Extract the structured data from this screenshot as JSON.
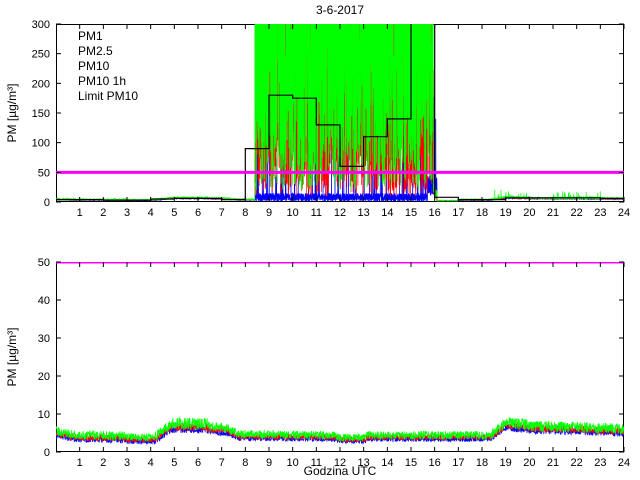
{
  "figure": {
    "title": "3-6-2017",
    "background": "#ffffff"
  },
  "legend": [
    {
      "label": "PM1",
      "color": "#0000ff"
    },
    {
      "label": "PM2.5",
      "color": "#ff0000"
    },
    {
      "label": "PM10",
      "color": "#00ff00"
    },
    {
      "label": "PM10 1h",
      "color": "#000000"
    },
    {
      "label": "Limit PM10",
      "color": "#ff00ff"
    }
  ],
  "chart_data": [
    {
      "type": "line",
      "title": "3-6-2017",
      "xlabel": "",
      "ylabel": "PM [µg/m³]",
      "xlim": [
        0,
        24
      ],
      "ylim": [
        0,
        300
      ],
      "xticks": [
        1,
        2,
        3,
        4,
        5,
        6,
        7,
        8,
        9,
        10,
        11,
        12,
        13,
        14,
        15,
        16,
        17,
        18,
        19,
        20,
        21,
        22,
        23,
        24
      ],
      "yticks": [
        0,
        50,
        100,
        150,
        200,
        250,
        300
      ],
      "grid": false,
      "legend_position": "top-left-inside",
      "limit_line": {
        "label": "Limit PM10",
        "y": 50,
        "color": "#ff00ff"
      },
      "step_series": {
        "name": "PM10 1h",
        "color": "#000000",
        "description": "hourly mean PM10, step per hour 0-23",
        "values": [
          4,
          4,
          3,
          3,
          5,
          6,
          6,
          4,
          90,
          180,
          175,
          130,
          60,
          110,
          140,
          320,
          8,
          4,
          4,
          7,
          7,
          7,
          7,
          6
        ]
      },
      "series": [
        {
          "name": "PM1",
          "color": "#0000ff",
          "segments": [
            [
              0,
              0.6,
              4.2,
              3.6,
              0.8
            ],
            [
              0.6,
              3,
              3.4,
              3.1,
              0.8
            ],
            [
              3,
              4.2,
              2.8,
              2.8,
              0.7
            ],
            [
              4.2,
              4.9,
              3,
              6,
              0.9
            ],
            [
              4.9,
              6.4,
              6,
              5.9,
              1.0
            ],
            [
              6.4,
              7.3,
              5.4,
              4.9,
              0.8
            ],
            [
              7.3,
              7.7,
              4.8,
              3.7,
              0.7
            ],
            [
              7.7,
              8.4,
              3.6,
              3.5,
              0.7
            ],
            [
              8.4,
              15.7,
              8,
              8,
              7,
              0.05,
              30,
              200
            ],
            [
              15.7,
              16.1,
              30,
              25,
              18,
              0.1,
              60,
              260
            ],
            [
              16.1,
              17,
              1.8,
              1.8,
              0.6
            ],
            [
              17,
              18.4,
              3,
              3,
              0.8
            ],
            [
              18.4,
              19.1,
              3.8,
              6.8,
              0.9
            ],
            [
              19.1,
              20,
              6.4,
              5.8,
              1.0
            ],
            [
              20,
              22,
              5.6,
              5.4,
              0.9
            ],
            [
              22,
              24,
              5.4,
              4.9,
              0.9
            ]
          ]
        },
        {
          "name": "PM2.5",
          "color": "#ff0000",
          "segments": [
            [
              0,
              0.6,
              4.8,
              4.1,
              0.9
            ],
            [
              0.6,
              3,
              3.9,
              3.6,
              0.9
            ],
            [
              3,
              4.2,
              3.3,
              3.3,
              0.8
            ],
            [
              4.2,
              4.9,
              3.5,
              6.7,
              1.0
            ],
            [
              4.9,
              6.4,
              6.7,
              6.5,
              1.1
            ],
            [
              6.4,
              7.3,
              6,
              5.5,
              0.9
            ],
            [
              7.3,
              7.7,
              5.3,
              4.2,
              0.8
            ],
            [
              7.7,
              8.4,
              4.1,
              4,
              0.8
            ],
            [
              8.4,
              15.95,
              95,
              95,
              85,
              0.45,
              150,
              620
            ],
            [
              15.95,
              16.1,
              20,
              8,
              8
            ],
            [
              16.1,
              17,
              2.1,
              2.1,
              0.7
            ],
            [
              17,
              18.4,
              3.6,
              3.6,
              0.9
            ],
            [
              18.4,
              19.1,
              4.2,
              7.4,
              1.0
            ],
            [
              19.1,
              20,
              7,
              6.4,
              1.1
            ],
            [
              20,
              22,
              6.2,
              6,
              1.0
            ],
            [
              22,
              24,
              6,
              5.4,
              1.0
            ]
          ]
        },
        {
          "name": "PM10",
          "color": "#00ff00",
          "segments": [
            [
              0,
              0.6,
              5.5,
              4.8,
              1.3
            ],
            [
              0.6,
              3,
              4.6,
              4.2,
              1.2
            ],
            [
              3,
              4.2,
              3.9,
              3.9,
              1.0
            ],
            [
              4.2,
              4.9,
              4.2,
              7.6,
              1.3
            ],
            [
              4.9,
              6.4,
              7.6,
              7.4,
              1.6
            ],
            [
              6.4,
              7.3,
              6.8,
              6.2,
              1.3
            ],
            [
              7.3,
              7.7,
              6,
              4.8,
              1.1
            ],
            [
              7.7,
              8.4,
              4.7,
              4.5,
              1.1
            ],
            [
              8.4,
              15.95,
              140,
              140,
              120,
              0.55,
              200,
              700
            ],
            [
              15.95,
              16.1,
              25,
              10,
              10
            ],
            [
              16.1,
              17,
              2.5,
              2.5,
              0.8
            ],
            [
              17,
              18.4,
              4.2,
              4.2,
              1.2
            ],
            [
              18.4,
              19.1,
              4.8,
              9,
              1.6,
              0.03,
              10,
              22
            ],
            [
              19.1,
              20,
              8.5,
              7.5,
              2.0,
              0.03,
              10,
              20
            ],
            [
              20,
              21,
              7,
              6.8,
              1.6
            ],
            [
              21,
              23,
              7,
              7,
              2.2,
              0.04,
              10,
              18
            ],
            [
              23,
              24,
              6.6,
              6.2,
              1.6
            ]
          ]
        }
      ]
    },
    {
      "type": "line",
      "title": "",
      "xlabel": "Godzina UTC",
      "ylabel": "PM [µg/m³]",
      "xlim": [
        0,
        24
      ],
      "ylim": [
        0,
        50
      ],
      "xticks": [
        1,
        2,
        3,
        4,
        5,
        6,
        7,
        8,
        9,
        10,
        11,
        12,
        13,
        14,
        15,
        16,
        17,
        18,
        19,
        20,
        21,
        22,
        23,
        24
      ],
      "yticks": [
        0,
        10,
        20,
        30,
        40,
        50
      ],
      "grid": false,
      "limit_line": {
        "label": "Limit PM10",
        "y": 50,
        "color": "#ff00ff"
      },
      "series": [
        {
          "name": "PM1",
          "color": "#0000ff",
          "segments": [
            [
              0,
              0.6,
              4.2,
              3.6,
              0.8
            ],
            [
              0.6,
              3,
              3.4,
              3.1,
              0.8
            ],
            [
              3,
              4.2,
              2.8,
              2.8,
              0.7
            ],
            [
              4.2,
              4.9,
              3,
              6,
              0.9
            ],
            [
              4.9,
              6.4,
              6,
              5.9,
              1.0
            ],
            [
              6.4,
              7.3,
              5.4,
              4.9,
              0.8
            ],
            [
              7.3,
              7.7,
              4.8,
              3.7,
              0.7
            ],
            [
              7.7,
              11.9,
              3.6,
              3.4,
              0.7
            ],
            [
              11.9,
              13.1,
              2.9,
              2.9,
              0.7
            ],
            [
              13.1,
              18.4,
              3.4,
              3.4,
              0.7
            ],
            [
              18.4,
              19.1,
              3.8,
              6.8,
              0.9
            ],
            [
              19.1,
              20,
              6.4,
              5.8,
              1.0
            ],
            [
              20,
              22,
              5.6,
              5.4,
              0.9
            ],
            [
              22,
              24,
              5.4,
              4.9,
              0.9
            ]
          ]
        },
        {
          "name": "PM2.5",
          "color": "#ff0000",
          "segments": [
            [
              0,
              0.6,
              4.8,
              4.1,
              0.9
            ],
            [
              0.6,
              3,
              3.9,
              3.6,
              0.9
            ],
            [
              3,
              4.2,
              3.3,
              3.3,
              0.8
            ],
            [
              4.2,
              4.9,
              3.5,
              6.7,
              1.0
            ],
            [
              4.9,
              6.4,
              6.7,
              6.5,
              1.1
            ],
            [
              6.4,
              7.3,
              6,
              5.5,
              0.9
            ],
            [
              7.3,
              7.7,
              5.3,
              4.2,
              0.8
            ],
            [
              7.7,
              11.9,
              4.1,
              3.9,
              0.8
            ],
            [
              11.9,
              13.1,
              3.4,
              3.4,
              0.8
            ],
            [
              13.1,
              18.4,
              3.9,
              3.9,
              0.8
            ],
            [
              18.4,
              19.1,
              4.2,
              7.4,
              1.0
            ],
            [
              19.1,
              20,
              7,
              6.4,
              1.1
            ],
            [
              20,
              22,
              6.2,
              6,
              1.0
            ],
            [
              22,
              24,
              6,
              5.4,
              1.0
            ]
          ]
        },
        {
          "name": "PM10",
          "color": "#00ff00",
          "segments": [
            [
              0,
              0.6,
              5.5,
              4.8,
              1.3
            ],
            [
              0.6,
              3,
              4.6,
              4.2,
              1.2
            ],
            [
              3,
              4.2,
              3.9,
              3.9,
              1.0
            ],
            [
              4.2,
              4.9,
              4.2,
              7.6,
              1.3
            ],
            [
              4.9,
              6.4,
              7.6,
              7.4,
              1.6
            ],
            [
              6.4,
              7.3,
              6.8,
              6.2,
              1.3
            ],
            [
              7.3,
              7.7,
              6,
              4.8,
              1.1
            ],
            [
              7.7,
              11.9,
              4.7,
              4.4,
              1.1
            ],
            [
              11.9,
              13.1,
              3.8,
              3.8,
              1.0
            ],
            [
              13.1,
              18.4,
              4.4,
              4.4,
              1.1
            ],
            [
              18.4,
              19.1,
              4.8,
              8.2,
              1.4
            ],
            [
              19.1,
              20,
              7.8,
              7,
              1.5
            ],
            [
              20,
              22,
              6.8,
              6.6,
              1.4
            ],
            [
              22,
              24,
              6.6,
              6,
              1.4
            ]
          ]
        }
      ]
    }
  ]
}
